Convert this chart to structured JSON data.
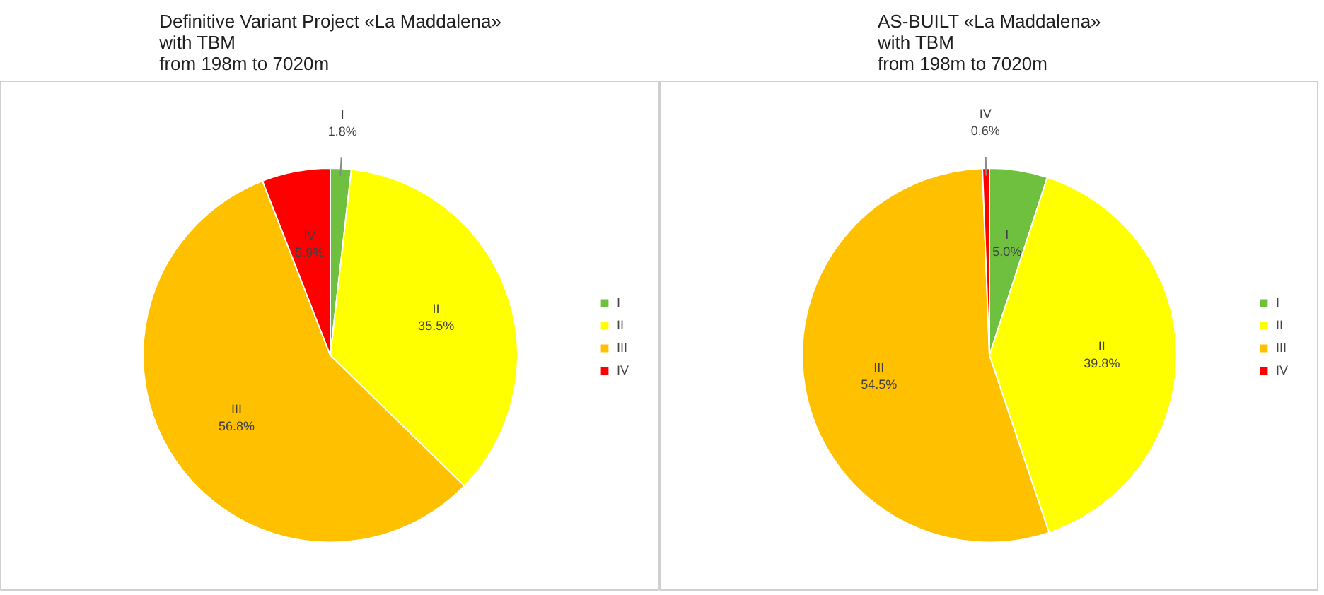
{
  "chart_data": [
    {
      "type": "pie",
      "title": "Definitive Variant Project «La Maddalena»\nwith TBM\nfrom 198m to 7020m",
      "categories": [
        "I",
        "II",
        "III",
        "IV"
      ],
      "values": [
        1.8,
        35.5,
        56.8,
        5.9
      ],
      "value_labels": [
        "1.8%",
        "35.5%",
        "56.8%",
        "5.9%"
      ],
      "colors": [
        "#70c040",
        "#ffff00",
        "#ffc000",
        "#ff0000"
      ],
      "legend": "right"
    },
    {
      "type": "pie",
      "title": "AS-BUILT «La Maddalena»\nwith TBM\nfrom 198m to 7020m",
      "categories": [
        "I",
        "II",
        "III",
        "IV"
      ],
      "values": [
        5.0,
        39.8,
        54.5,
        0.6
      ],
      "value_labels": [
        "5.0%",
        "39.8%",
        "54.5%",
        "0.6%"
      ],
      "colors": [
        "#70c040",
        "#ffff00",
        "#ffc000",
        "#ff0000"
      ],
      "legend": "right"
    }
  ]
}
